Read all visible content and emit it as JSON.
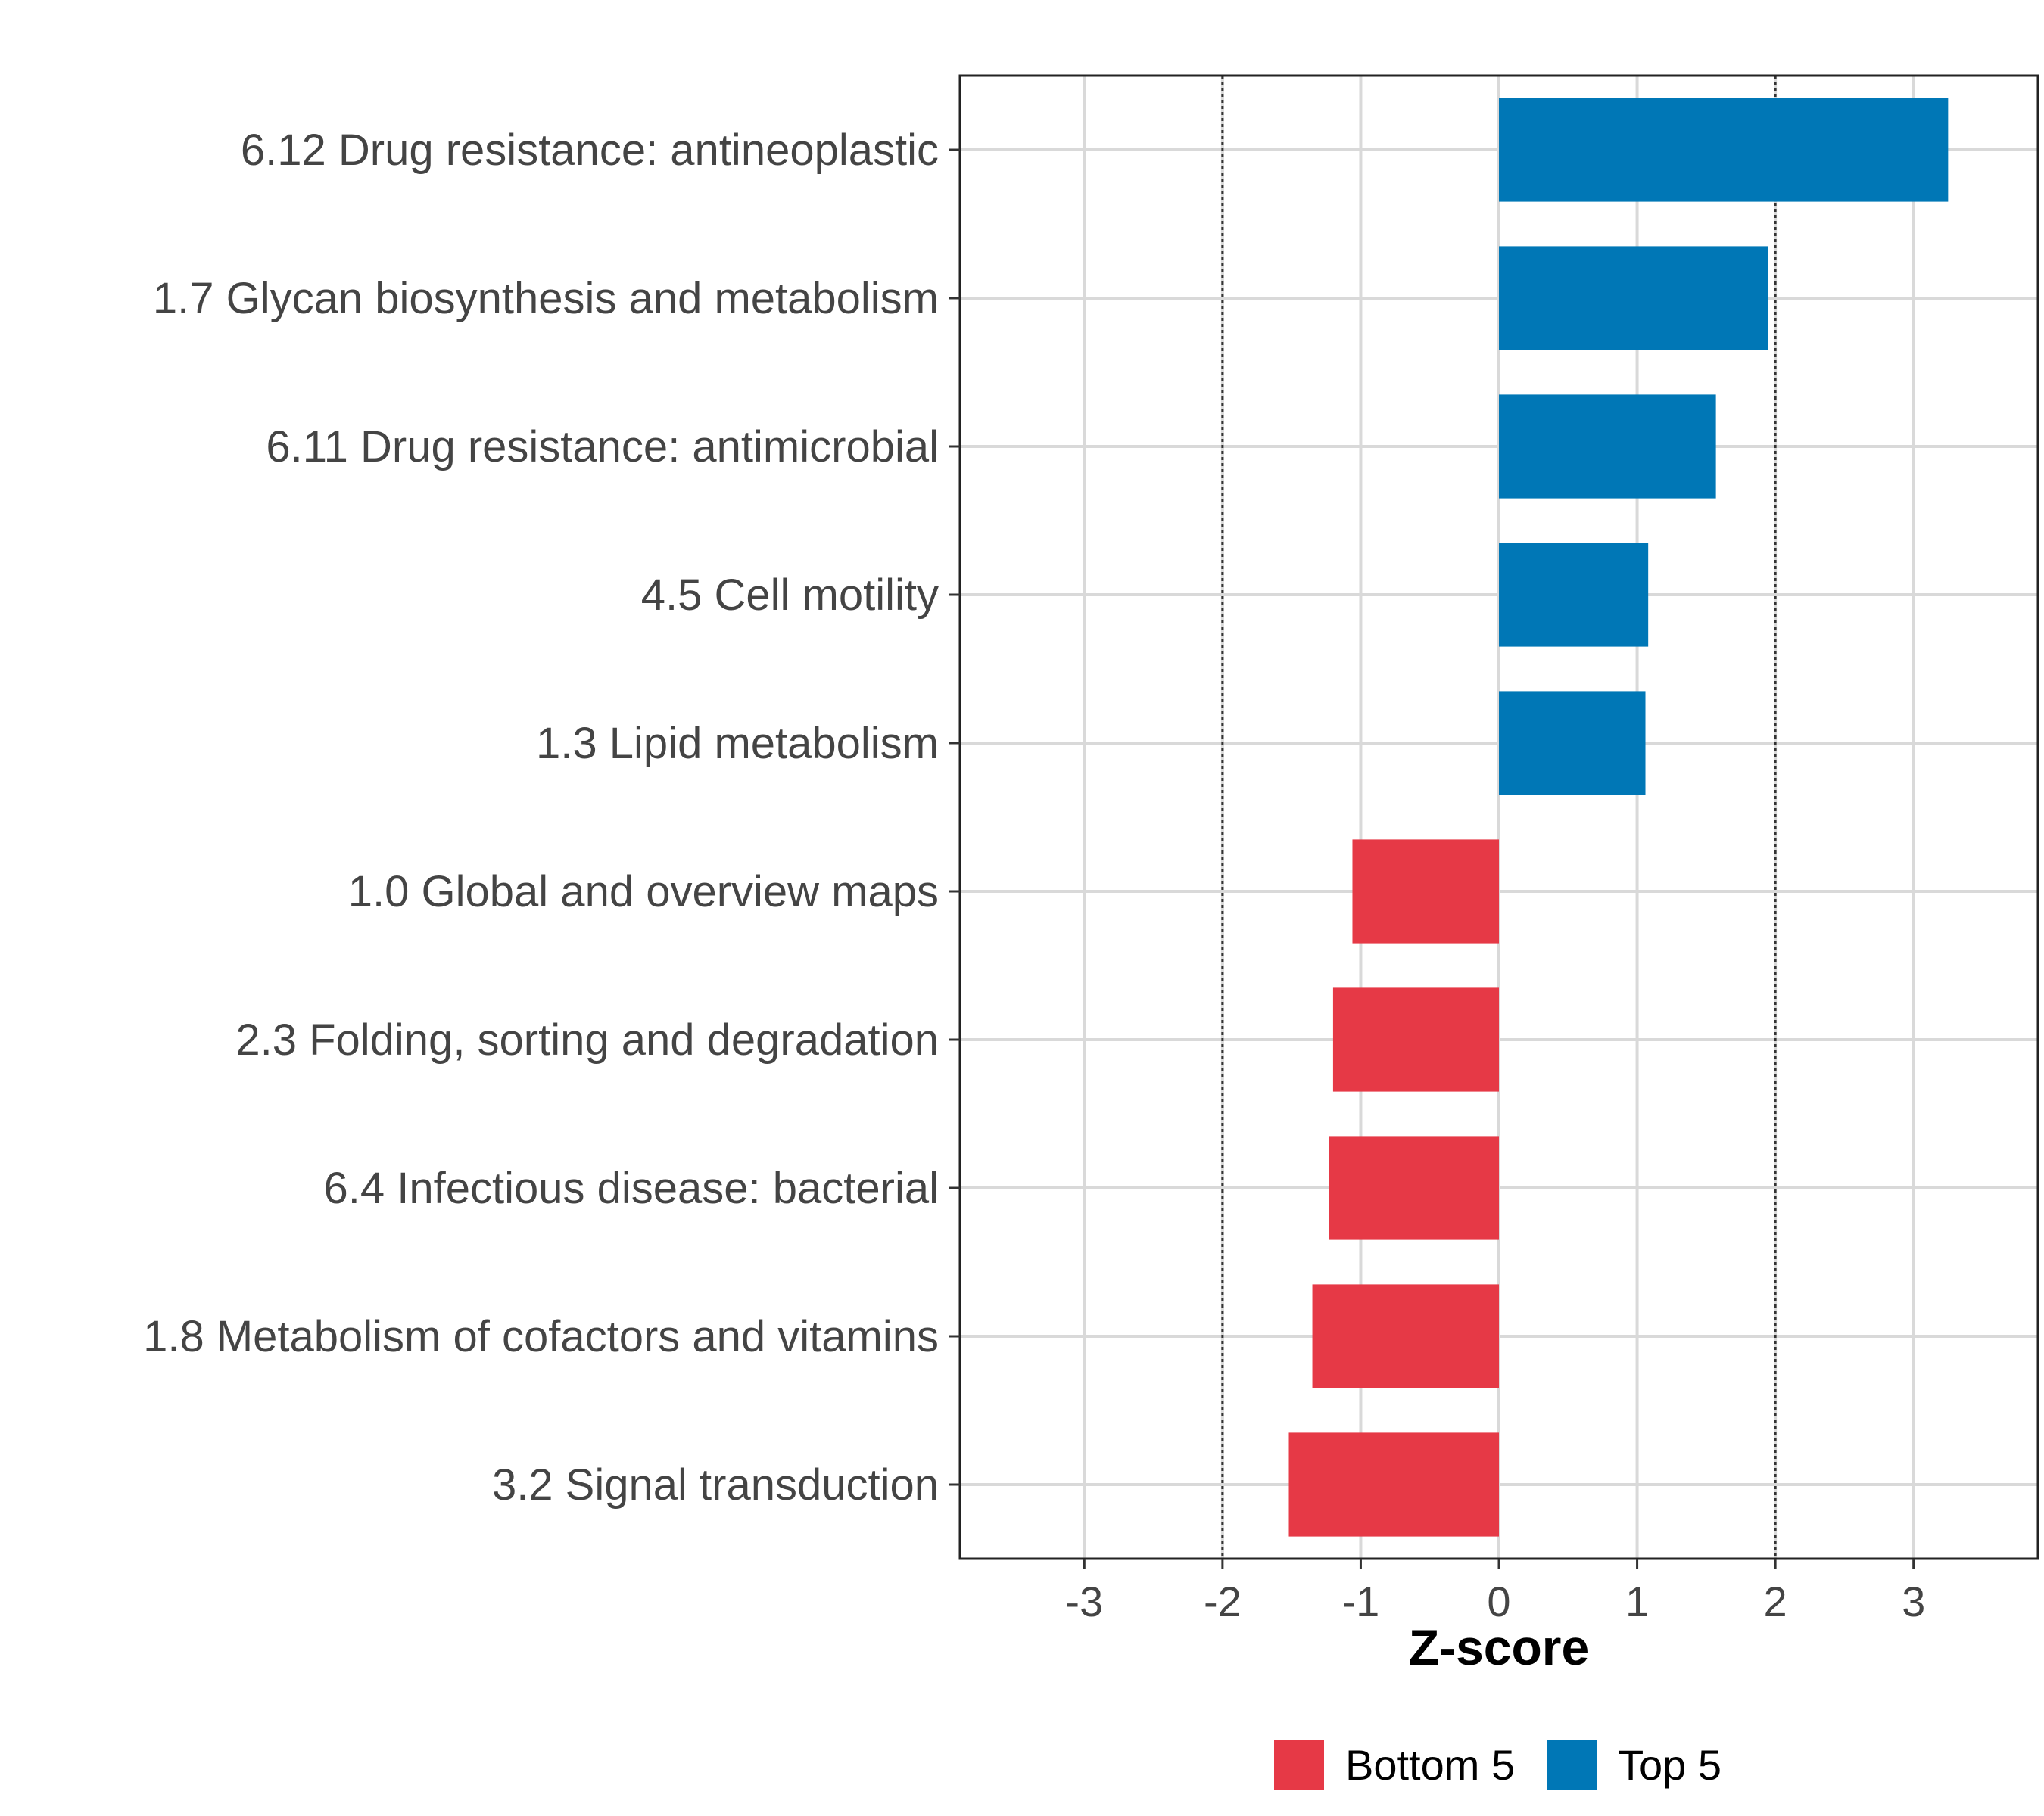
{
  "chart_data": {
    "type": "bar",
    "orientation": "horizontal",
    "title": "",
    "xlabel": "Z-score",
    "ylabel": "",
    "xlim": [
      -3.9,
      3.9
    ],
    "xticks": [
      -3,
      -2,
      -1,
      0,
      1,
      2,
      3
    ],
    "xtick_labels": [
      "-3",
      "-2",
      "-1",
      "0",
      "1",
      "2",
      "3"
    ],
    "reference_lines": [
      -2,
      2
    ],
    "grid": true,
    "categories": [
      "6.12 Drug resistance: antineoplastic",
      "1.7 Glycan biosynthesis and metabolism",
      "6.11 Drug resistance: antimicrobial",
      "4.5 Cell motility",
      "1.3 Lipid metabolism",
      "1.0 Global and overview maps",
      "2.3 Folding, sorting and degradation",
      "6.4 Infectious disease: bacterial",
      "1.8 Metabolism of cofactors and vitamins",
      "3.2 Signal transduction"
    ],
    "values": [
      3.25,
      1.95,
      1.57,
      1.08,
      1.06,
      -1.06,
      -1.2,
      -1.23,
      -1.35,
      -1.52
    ],
    "groups": [
      "Top 5",
      "Top 5",
      "Top 5",
      "Top 5",
      "Top 5",
      "Bottom 5",
      "Bottom 5",
      "Bottom 5",
      "Bottom 5",
      "Bottom 5"
    ],
    "legend": {
      "position": "bottom",
      "entries": [
        {
          "name": "Bottom 5",
          "color": "#E63946"
        },
        {
          "name": "Top 5",
          "color": "#0077B6"
        }
      ]
    },
    "colors": {
      "Top 5": "#0077B6",
      "Bottom 5": "#E63946"
    }
  }
}
